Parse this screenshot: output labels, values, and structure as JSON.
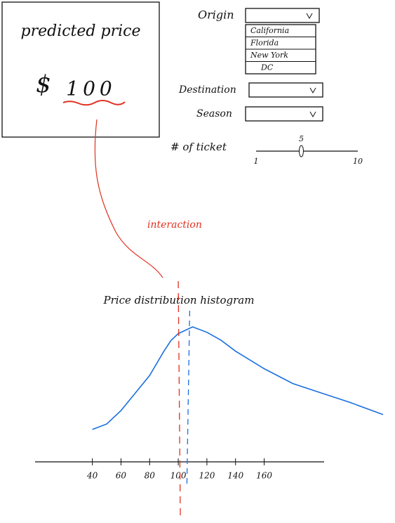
{
  "prediction": {
    "title": "predicted price",
    "currency": "$",
    "price": "100"
  },
  "controls": {
    "origin": {
      "label": "Origin",
      "options": [
        "California",
        "Florida",
        "New York",
        "DC"
      ]
    },
    "destination": {
      "label": "Destination"
    },
    "season": {
      "label": "Season"
    },
    "tickets": {
      "label": "# of ticket",
      "min": 1,
      "max": 10,
      "value": 5
    }
  },
  "annotation": "interaction",
  "chart_data": {
    "type": "line",
    "title": "Price distribution histogram",
    "x": [
      40,
      50,
      60,
      70,
      80,
      90,
      95,
      100,
      110,
      120,
      130,
      140,
      160,
      180,
      200,
      220,
      243
    ],
    "values": [
      24,
      28,
      38,
      51,
      64,
      82,
      90,
      95,
      100,
      96,
      90,
      82,
      69,
      58,
      51,
      44,
      35
    ],
    "color": "#1a6fe0",
    "xlim": [
      0,
      245
    ],
    "ylim": [
      0,
      100
    ],
    "xticks": [
      40,
      60,
      80,
      100,
      120,
      140,
      160
    ],
    "predicted_line": {
      "value": 100,
      "color": "#e03020"
    },
    "mean_line": {
      "value": 107,
      "color": "#1a6fe0"
    }
  }
}
